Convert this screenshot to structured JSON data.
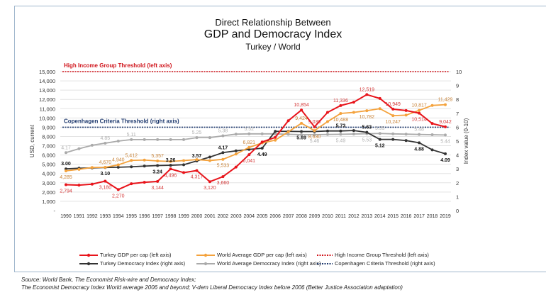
{
  "chart_data": {
    "type": "line",
    "title": "Direct Relationship Between",
    "subtitle": "GDP and Democracy Index",
    "subtitle2": "Turkey / World",
    "ylabel_left": "USD, current",
    "ylabel_right": "Index value (0-10)",
    "ylim_left": [
      0,
      15000
    ],
    "ylim_right": [
      0,
      10
    ],
    "left_ticks": [
      "-",
      "1,000",
      "2,000",
      "3,000",
      "4,000",
      "5,000",
      "6,000",
      "7,000",
      "8,000",
      "9,000",
      "10,000",
      "11,000",
      "12,000",
      "13,000",
      "14,000",
      "15,000"
    ],
    "right_ticks": [
      "0",
      "1",
      "2",
      "3",
      "4",
      "5",
      "6",
      "7",
      "8",
      "9",
      "10"
    ],
    "grid": true,
    "legend_position": "bottom",
    "x": [
      1990,
      1991,
      1992,
      1993,
      1994,
      1995,
      1996,
      1997,
      1998,
      1999,
      2000,
      2001,
      2002,
      2003,
      2004,
      2005,
      2006,
      2007,
      2008,
      2009,
      2010,
      2011,
      2012,
      2013,
      2014,
      2015,
      2016,
      2017,
      2018,
      2019
    ],
    "series": [
      {
        "name": "Turkey GDP per cap (left axis)",
        "axis": "left",
        "color": "#e8141b",
        "values": [
          2794,
          2750,
          2850,
          3180,
          2270,
          2900,
          3050,
          3144,
          4496,
          4100,
          4317,
          3120,
          3660,
          4700,
          6041,
          7400,
          7900,
          9700,
          10854,
          9036,
          10600,
          11336,
          11700,
          12519,
          12100,
          10949,
          10800,
          10514,
          9400,
          9042
        ]
      },
      {
        "name": "World Average GDP per cap (left axis)",
        "axis": "left",
        "color": "#f4a23c",
        "values": [
          4285,
          4450,
          4650,
          4670,
          4940,
          5412,
          5450,
          5357,
          5300,
          5400,
          5500,
          5400,
          5533,
          6100,
          6821,
          7300,
          7600,
          8500,
          9424,
          8630,
          9600,
          10488,
          10600,
          10782,
          11000,
          10247,
          10300,
          10817,
          11350,
          11429
        ]
      },
      {
        "name": "Turkey Democracy Index (right axis)",
        "axis": "right",
        "color": "#333333",
        "values": [
          3.0,
          3.05,
          3.07,
          3.1,
          3.12,
          3.15,
          3.2,
          3.24,
          3.26,
          3.3,
          3.57,
          3.85,
          4.17,
          4.3,
          4.4,
          4.49,
          5.7,
          5.7,
          5.69,
          5.69,
          5.73,
          5.73,
          5.76,
          5.63,
          5.12,
          5.12,
          5.04,
          4.88,
          4.37,
          4.09
        ]
      },
      {
        "name": "World Average Democracy Index (right axis)",
        "axis": "right",
        "color": "#aaaaaa",
        "values": [
          4.17,
          4.45,
          4.7,
          4.85,
          5.0,
          5.11,
          5.11,
          5.11,
          5.11,
          5.11,
          5.25,
          5.25,
          5.38,
          5.5,
          5.52,
          5.52,
          5.52,
          5.49,
          5.46,
          5.46,
          5.48,
          5.49,
          5.51,
          5.53,
          5.55,
          5.52,
          5.5,
          5.48,
          5.46,
          5.44
        ]
      }
    ],
    "thresholds": [
      {
        "name": "High Income Group Threshold (left axis)",
        "label": "High Income Group Threshold (left axis)",
        "axis": "left",
        "value": 15000,
        "color": "#d0141b"
      },
      {
        "name": "Copenhagen Criteria Threshold (right axis)",
        "label": "Copenhagen Criteria Threshold (right axis)",
        "axis": "right",
        "value": 6,
        "color": "#1f3a6e"
      }
    ],
    "data_labels": [
      {
        "series": 0,
        "year": 1990,
        "text": "2,794",
        "pos": "below"
      },
      {
        "series": 0,
        "year": 1993,
        "text": "3,180",
        "pos": "below"
      },
      {
        "series": 0,
        "year": 1994,
        "text": "2,270",
        "pos": "below"
      },
      {
        "series": 0,
        "year": 1997,
        "text": "3,144",
        "pos": "below"
      },
      {
        "series": 0,
        "year": 1998,
        "text": "4,496",
        "pos": "below"
      },
      {
        "series": 0,
        "year": 2000,
        "text": "4,317",
        "pos": "below"
      },
      {
        "series": 0,
        "year": 2001,
        "text": "3,120",
        "pos": "below"
      },
      {
        "series": 0,
        "year": 2002,
        "text": "3,660",
        "pos": "below"
      },
      {
        "series": 0,
        "year": 2004,
        "text": "6,041",
        "pos": "below"
      },
      {
        "series": 0,
        "year": 2008,
        "text": "10,854",
        "pos": "above"
      },
      {
        "series": 0,
        "year": 2009,
        "text": "9,036",
        "pos": "above"
      },
      {
        "series": 0,
        "year": 2011,
        "text": "11,336",
        "pos": "above"
      },
      {
        "series": 0,
        "year": 2013,
        "text": "12,519",
        "pos": "above"
      },
      {
        "series": 0,
        "year": 2015,
        "text": "10,949",
        "pos": "above"
      },
      {
        "series": 0,
        "year": 2017,
        "text": "10,514",
        "pos": "below"
      },
      {
        "series": 0,
        "year": 2019,
        "text": "9,042",
        "pos": "above"
      },
      {
        "series": 1,
        "year": 1990,
        "text": "4,285",
        "pos": "below"
      },
      {
        "series": 1,
        "year": 1993,
        "text": "4,670",
        "pos": "above"
      },
      {
        "series": 1,
        "year": 1994,
        "text": "4,940",
        "pos": "above"
      },
      {
        "series": 1,
        "year": 1995,
        "text": "5,412",
        "pos": "above"
      },
      {
        "series": 1,
        "year": 1997,
        "text": "5,357",
        "pos": "above"
      },
      {
        "series": 1,
        "year": 2002,
        "text": "5,533",
        "pos": "below"
      },
      {
        "series": 1,
        "year": 2004,
        "text": "6,821",
        "pos": "above"
      },
      {
        "series": 1,
        "year": 2008,
        "text": "9,424",
        "pos": "above"
      },
      {
        "series": 1,
        "year": 2009,
        "text": "8,630",
        "pos": "below"
      },
      {
        "series": 1,
        "year": 2011,
        "text": "10,488",
        "pos": "below"
      },
      {
        "series": 1,
        "year": 2013,
        "text": "10,782",
        "pos": "below"
      },
      {
        "series": 1,
        "year": 2015,
        "text": "10,247",
        "pos": "below"
      },
      {
        "series": 1,
        "year": 2017,
        "text": "10,817",
        "pos": "above"
      },
      {
        "series": 1,
        "year": 2019,
        "text": "11,429",
        "pos": "above"
      },
      {
        "series": 2,
        "year": 1990,
        "text": "3.00",
        "pos": "above"
      },
      {
        "series": 2,
        "year": 1993,
        "text": "3.10",
        "pos": "below"
      },
      {
        "series": 2,
        "year": 1997,
        "text": "3.24",
        "pos": "below"
      },
      {
        "series": 2,
        "year": 1998,
        "text": "3.26",
        "pos": "above"
      },
      {
        "series": 2,
        "year": 2000,
        "text": "3.57",
        "pos": "above"
      },
      {
        "series": 2,
        "year": 2002,
        "text": "4.17",
        "pos": "above"
      },
      {
        "series": 2,
        "year": 2005,
        "text": "4.49",
        "pos": "below"
      },
      {
        "series": 2,
        "year": 2008,
        "text": "5.69",
        "pos": "below"
      },
      {
        "series": 2,
        "year": 2011,
        "text": "5.73",
        "pos": "above"
      },
      {
        "series": 2,
        "year": 2013,
        "text": "5.63",
        "pos": "above"
      },
      {
        "series": 2,
        "year": 2014,
        "text": "5.12",
        "pos": "below"
      },
      {
        "series": 2,
        "year": 2017,
        "text": "4.88",
        "pos": "below"
      },
      {
        "series": 2,
        "year": 2019,
        "text": "4.09",
        "pos": "below"
      },
      {
        "series": 3,
        "year": 1990,
        "text": "4.17",
        "pos": "above"
      },
      {
        "series": 3,
        "year": 1993,
        "text": "4.85",
        "pos": "above"
      },
      {
        "series": 3,
        "year": 1995,
        "text": "5.11",
        "pos": "above"
      },
      {
        "series": 3,
        "year": 2000,
        "text": "5.25",
        "pos": "above"
      },
      {
        "series": 3,
        "year": 2002,
        "text": "5.38",
        "pos": "above"
      },
      {
        "series": 3,
        "year": 2004,
        "text": "5.52",
        "pos": "above"
      },
      {
        "series": 3,
        "year": 2009,
        "text": "5.46",
        "pos": "below"
      },
      {
        "series": 3,
        "year": 2011,
        "text": "5.49",
        "pos": "below"
      },
      {
        "series": 3,
        "year": 2013,
        "text": "5.53",
        "pos": "below"
      },
      {
        "series": 3,
        "year": 2014,
        "text": "5.55",
        "pos": "above"
      },
      {
        "series": 3,
        "year": 2017,
        "text": "5.48",
        "pos": "above"
      },
      {
        "series": 3,
        "year": 2019,
        "text": "5.44",
        "pos": "below"
      }
    ]
  },
  "source_line1": "Source: World Bank, The Economist Risk-wire and Democracy Index;",
  "source_line2": "The Economist Democracy Index World average 2006 and beyond; V-dem Liberal Democracy Index before 2006 (Better Justice Association adaptation)"
}
